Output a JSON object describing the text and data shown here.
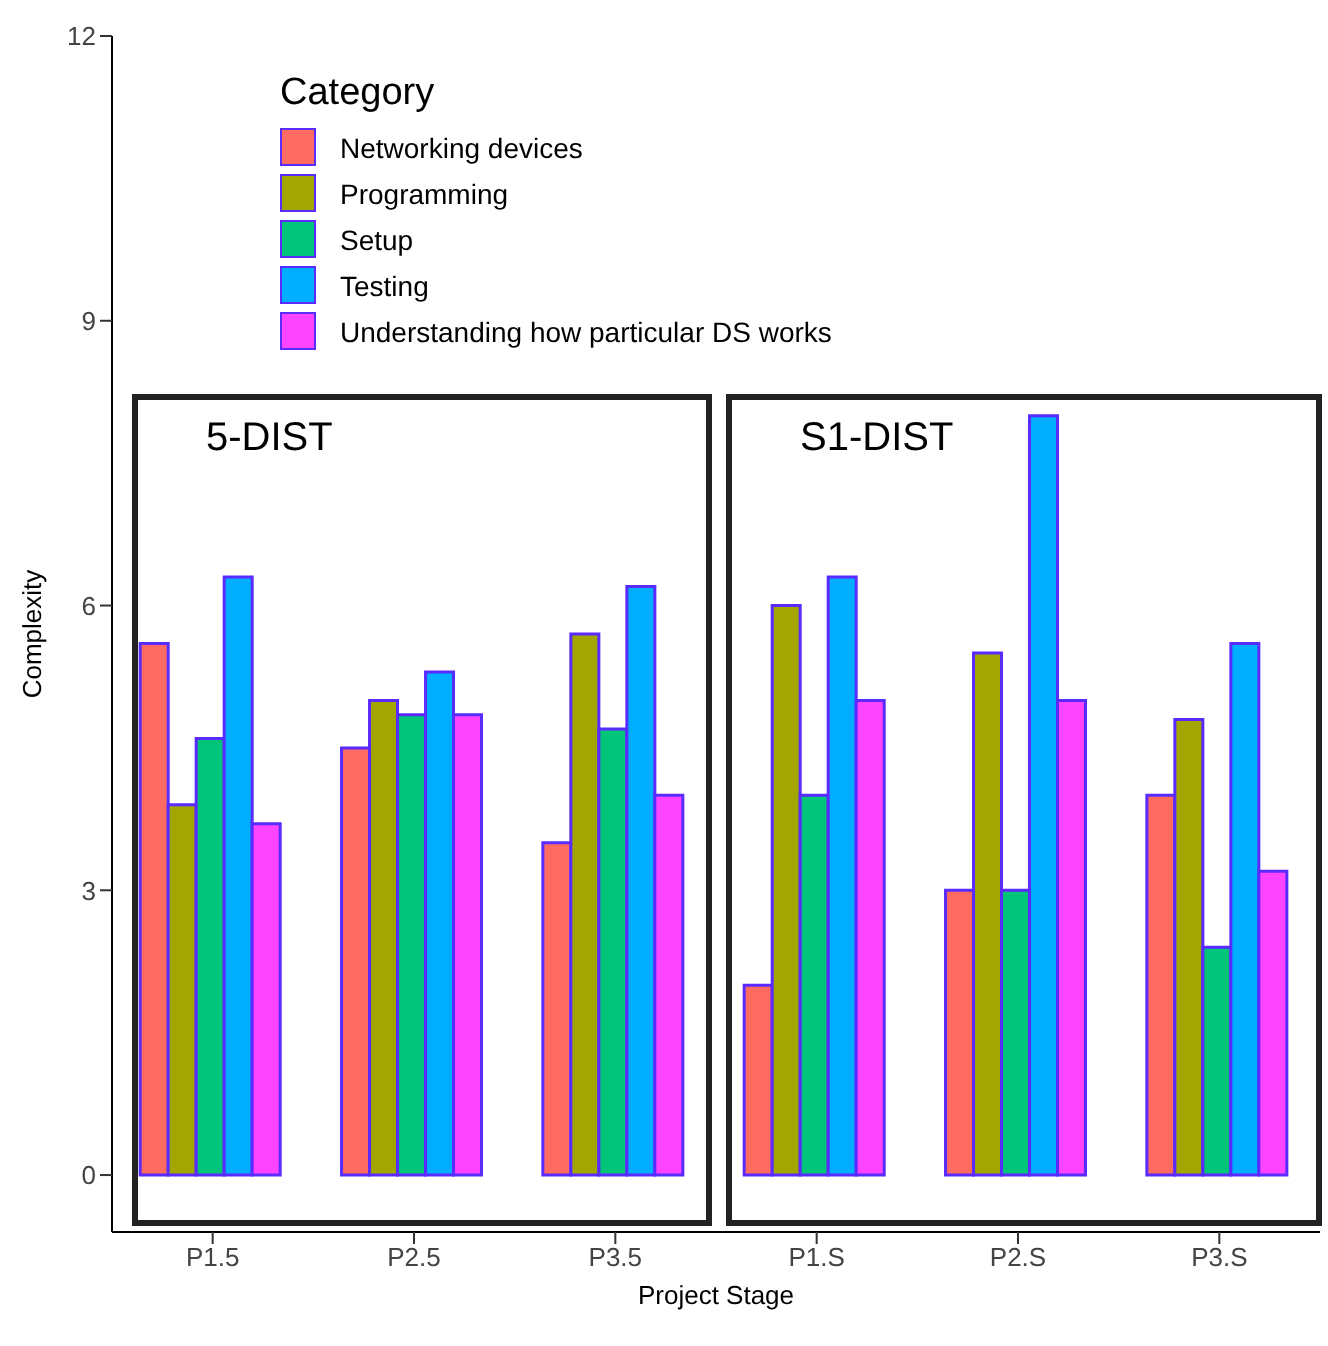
{
  "chart_data": {
    "type": "bar",
    "xlabel": "Project Stage",
    "ylabel": "Complexity",
    "legend_title": "Category",
    "legend": "top left",
    "grid": false,
    "categories": [
      "P1.5",
      "P2.5",
      "P3.5",
      "P1.S",
      "P2.S",
      "P3.S"
    ],
    "ylim": [
      -0.6,
      12
    ],
    "yticks": [
      0,
      3,
      6,
      9,
      12
    ],
    "annotations": [
      "5-DIST",
      "S1-DIST"
    ],
    "series": [
      {
        "name": "Networking devices",
        "color": "#ff6b61",
        "values": [
          5.6,
          4.5,
          3.5,
          2,
          3,
          4
        ]
      },
      {
        "name": "Programming",
        "color": "#a3a500",
        "values": [
          3.9,
          5,
          5.7,
          6,
          5.5,
          4.8
        ]
      },
      {
        "name": "Setup",
        "color": "#00c47a",
        "values": [
          4.6,
          4.85,
          4.7,
          4,
          3,
          2.4
        ]
      },
      {
        "name": "Testing",
        "color": "#00aeff",
        "values": [
          6.3,
          5.3,
          6.2,
          6.3,
          8,
          5.6
        ]
      },
      {
        "name": "Understanding how particular DS works",
        "color": "#ff44ff",
        "values": [
          3.7,
          4.85,
          4,
          5,
          5,
          3.2
        ]
      }
    ]
  }
}
